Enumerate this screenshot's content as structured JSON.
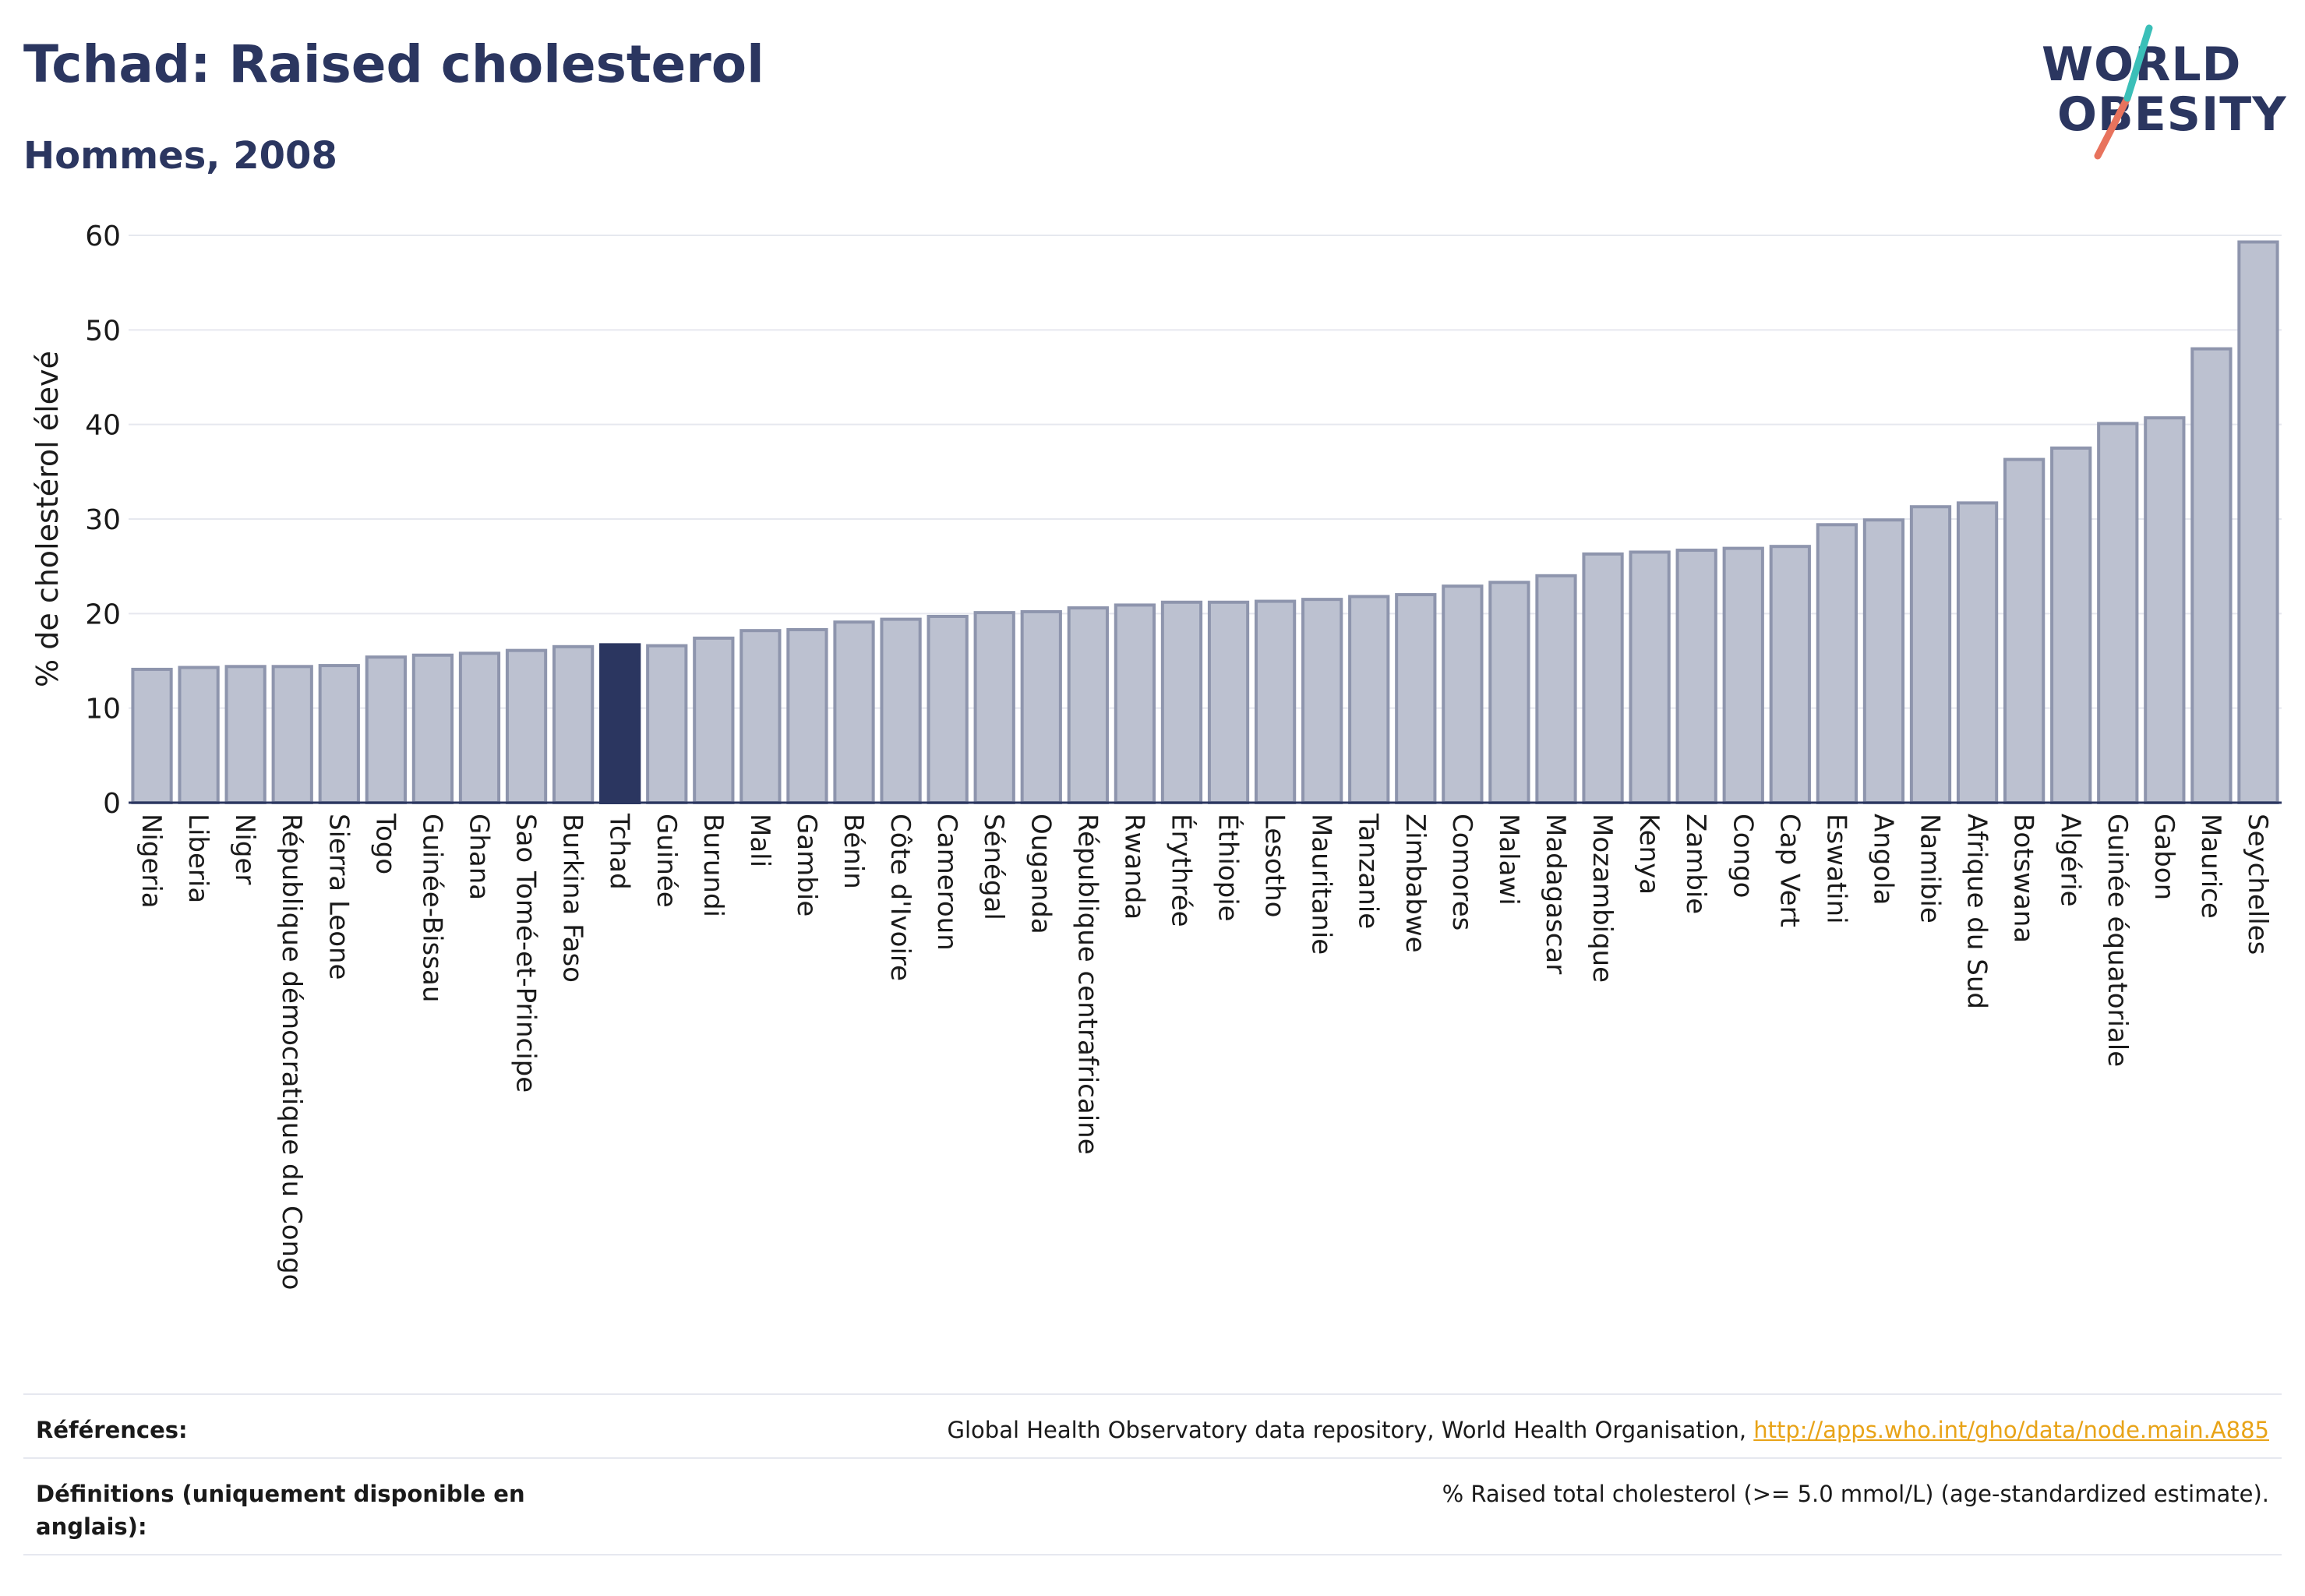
{
  "header": {
    "title": "Tchad: Raised cholesterol",
    "subtitle": "Hommes, 2008"
  },
  "logo": {
    "line1": "WORLD",
    "line2": "OBESITY",
    "accent_teal": "#3bbfb8",
    "accent_coral": "#e8735d"
  },
  "colors": {
    "bar": "#bcc1d0",
    "bar_stroke": "#8e95ad",
    "highlight": "#2b3660",
    "grid": "#e6e8ef",
    "axis": "#2b3660"
  },
  "chart_data": {
    "type": "bar",
    "ylabel": "% de cholestérol élevé",
    "ylim": [
      0,
      60
    ],
    "yticks": [
      0,
      10,
      20,
      30,
      40,
      50,
      60
    ],
    "highlight": "Tchad",
    "grid": true,
    "categories": [
      "Nigeria",
      "Liberia",
      "Niger",
      "République démocratique du Congo",
      "Sierra Leone",
      "Togo",
      "Guinée-Bissau",
      "Ghana",
      "Sao Tomé-et-Principe",
      "Burkina Faso",
      "Tchad",
      "Guinée",
      "Burundi",
      "Mali",
      "Gambie",
      "Bénin",
      "Côte d'Ivoire",
      "Cameroun",
      "Sénégal",
      "Ouganda",
      "République centrafricaine",
      "Rwanda",
      "Érythrée",
      "Éthiopie",
      "Lesotho",
      "Mauritanie",
      "Tanzanie",
      "Zimbabwe",
      "Comores",
      "Malawi",
      "Madagascar",
      "Mozambique",
      "Kenya",
      "Zambie",
      "Congo",
      "Cap Vert",
      "Eswatini",
      "Angola",
      "Namibie",
      "Afrique du Sud",
      "Botswana",
      "Algérie",
      "Guinée équatoriale",
      "Gabon",
      "Maurice",
      "Seychelles"
    ],
    "values": [
      14.1,
      14.3,
      14.4,
      14.4,
      14.5,
      15.4,
      15.6,
      15.8,
      16.1,
      16.5,
      16.7,
      16.6,
      17.4,
      18.2,
      18.3,
      19.1,
      19.4,
      19.7,
      20.1,
      20.2,
      20.6,
      20.9,
      21.2,
      21.2,
      21.3,
      21.5,
      21.8,
      22.0,
      22.9,
      23.3,
      24.0,
      26.3,
      26.5,
      26.7,
      26.9,
      27.1,
      29.4,
      29.9,
      31.3,
      31.7,
      36.3,
      37.5,
      40.1,
      40.7,
      48.0,
      59.3
    ]
  },
  "footer": {
    "references_label": "Références:",
    "references_text": "Global Health Observatory data repository, World Health Organisation,",
    "references_link": "http://apps.who.int/gho/data/node.main.A885",
    "definitions_label_1": "Définitions (uniquement disponible en",
    "definitions_label_2": "anglais):",
    "definitions_text": "% Raised total cholesterol (>= 5.0 mmol/L) (age-standardized estimate)."
  }
}
